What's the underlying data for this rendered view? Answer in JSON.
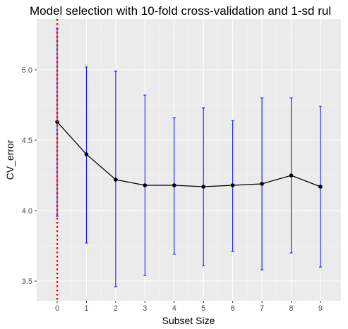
{
  "chart_data": {
    "type": "line",
    "title": "Model selection with 10-fold cross-validation and 1-sd rul",
    "xlabel": "Subset Size",
    "ylabel": "CV_error",
    "x": [
      0,
      1,
      2,
      3,
      4,
      5,
      6,
      7,
      8,
      9
    ],
    "x_ticks": [
      "0",
      "1",
      "2",
      "3",
      "4",
      "5",
      "6",
      "7",
      "8",
      "9"
    ],
    "y_ticks": [
      "3.5",
      "4.0",
      "4.5",
      "5.0"
    ],
    "xlim": [
      -0.7,
      9.7
    ],
    "ylim": [
      3.36,
      5.36
    ],
    "series": [
      {
        "values": [
          4.63,
          4.4,
          4.22,
          4.18,
          4.18,
          4.17,
          4.18,
          4.19,
          4.25,
          4.17
        ],
        "lower": [
          3.96,
          3.77,
          3.46,
          3.54,
          3.69,
          3.61,
          3.71,
          3.58,
          3.7,
          3.6
        ],
        "upper": [
          5.29,
          5.02,
          4.99,
          4.82,
          4.66,
          4.73,
          4.64,
          4.8,
          4.8,
          4.74
        ]
      }
    ],
    "selected_size": 0,
    "grid": true,
    "colors": {
      "panel": "#ebebeb",
      "grid_major": "#ffffff",
      "grid_minor": "#f5f5f5",
      "line": "#000000",
      "points": "#000000",
      "error_bars": "#0000ff",
      "selected_line": "#ff0000"
    }
  }
}
